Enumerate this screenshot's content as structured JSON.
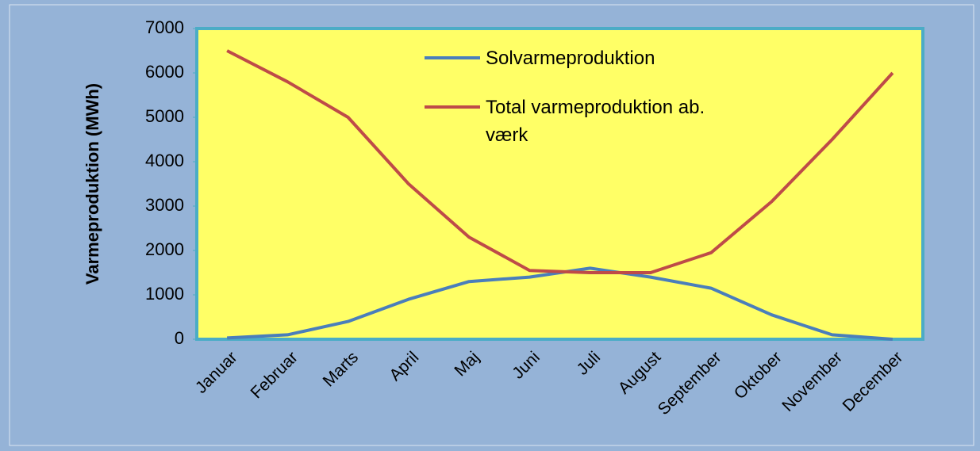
{
  "chart_data": {
    "type": "line",
    "ylabel": "Varmeproduktion (MWh)",
    "categories": [
      "Januar",
      "Februar",
      "Marts",
      "April",
      "Maj",
      "Juni",
      "Juli",
      "August",
      "September",
      "Oktober",
      "November",
      "December"
    ],
    "series": [
      {
        "name": "Solvarmeproduktion",
        "color": "#4a7ebb",
        "values": [
          30,
          100,
          400,
          900,
          1300,
          1400,
          1600,
          1400,
          1150,
          550,
          100,
          0
        ]
      },
      {
        "name": "Total varmeproduktion ab. værk",
        "color": "#be4b48",
        "values": [
          6500,
          5800,
          5000,
          3500,
          2300,
          1550,
          1500,
          1500,
          1950,
          3100,
          4500,
          6000
        ]
      }
    ],
    "ylim": [
      0,
      7000
    ],
    "yticks": [
      0,
      1000,
      2000,
      3000,
      4000,
      5000,
      6000,
      7000
    ],
    "legend": "top",
    "grid": false
  }
}
